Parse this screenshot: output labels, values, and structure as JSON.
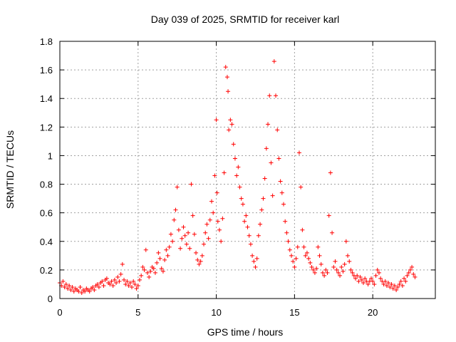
{
  "chart_data": {
    "type": "scatter",
    "title": "Day 039 of 2025, SRMTID for receiver karl",
    "xlabel": "GPS time / hours",
    "ylabel": "SRMTID / TECUs",
    "xlim": [
      0,
      24
    ],
    "ylim": [
      0,
      1.8
    ],
    "x_ticks": [
      0,
      5,
      10,
      15,
      20
    ],
    "x_tick_labels": [
      "0",
      "5",
      "10",
      "15",
      "20"
    ],
    "y_ticks": [
      0,
      0.2,
      0.4,
      0.6,
      0.8,
      1.0,
      1.2,
      1.4,
      1.6,
      1.8
    ],
    "y_tick_labels": [
      "0",
      "0.2",
      "0.4",
      "0.6",
      "0.8",
      "1",
      "1.2",
      "1.4",
      "1.6",
      "1.8"
    ],
    "grid": true,
    "marker": "+",
    "series": [
      {
        "name": "SRMTID",
        "color": "#ff0000",
        "points": [
          [
            0.0,
            0.11
          ],
          [
            0.1,
            0.09
          ],
          [
            0.2,
            0.12
          ],
          [
            0.3,
            0.08
          ],
          [
            0.4,
            0.1
          ],
          [
            0.5,
            0.07
          ],
          [
            0.6,
            0.09
          ],
          [
            0.7,
            0.06
          ],
          [
            0.8,
            0.08
          ],
          [
            0.9,
            0.05
          ],
          [
            1.0,
            0.07
          ],
          [
            1.1,
            0.06
          ],
          [
            1.2,
            0.05
          ],
          [
            1.3,
            0.08
          ],
          [
            1.4,
            0.04
          ],
          [
            1.5,
            0.06
          ],
          [
            1.6,
            0.05
          ],
          [
            1.7,
            0.07
          ],
          [
            1.8,
            0.06
          ],
          [
            1.9,
            0.05
          ],
          [
            2.0,
            0.07
          ],
          [
            2.1,
            0.08
          ],
          [
            2.2,
            0.06
          ],
          [
            2.3,
            0.09
          ],
          [
            2.4,
            0.1
          ],
          [
            2.5,
            0.08
          ],
          [
            2.6,
            0.11
          ],
          [
            2.7,
            0.12
          ],
          [
            2.8,
            0.09
          ],
          [
            2.9,
            0.13
          ],
          [
            3.0,
            0.14
          ],
          [
            3.1,
            0.11
          ],
          [
            3.2,
            0.1
          ],
          [
            3.3,
            0.12
          ],
          [
            3.4,
            0.09
          ],
          [
            3.5,
            0.13
          ],
          [
            3.6,
            0.11
          ],
          [
            3.7,
            0.15
          ],
          [
            3.8,
            0.12
          ],
          [
            3.9,
            0.17
          ],
          [
            4.0,
            0.24
          ],
          [
            4.1,
            0.13
          ],
          [
            4.2,
            0.1
          ],
          [
            4.3,
            0.12
          ],
          [
            4.4,
            0.09
          ],
          [
            4.5,
            0.11
          ],
          [
            4.6,
            0.08
          ],
          [
            4.7,
            0.12
          ],
          [
            4.8,
            0.1
          ],
          [
            4.9,
            0.07
          ],
          [
            5.0,
            0.09
          ],
          [
            5.1,
            0.13
          ],
          [
            5.2,
            0.16
          ],
          [
            5.3,
            0.22
          ],
          [
            5.4,
            0.2
          ],
          [
            5.5,
            0.34
          ],
          [
            5.6,
            0.18
          ],
          [
            5.7,
            0.15
          ],
          [
            5.8,
            0.19
          ],
          [
            5.9,
            0.22
          ],
          [
            6.0,
            0.21
          ],
          [
            6.1,
            0.18
          ],
          [
            6.2,
            0.25
          ],
          [
            6.3,
            0.32
          ],
          [
            6.4,
            0.28
          ],
          [
            6.5,
            0.21
          ],
          [
            6.6,
            0.19
          ],
          [
            6.7,
            0.27
          ],
          [
            6.8,
            0.34
          ],
          [
            6.9,
            0.3
          ],
          [
            7.0,
            0.36
          ],
          [
            7.1,
            0.45
          ],
          [
            7.2,
            0.4
          ],
          [
            7.3,
            0.55
          ],
          [
            7.4,
            0.62
          ],
          [
            7.5,
            0.78
          ],
          [
            7.6,
            0.48
          ],
          [
            7.7,
            0.35
          ],
          [
            7.8,
            0.42
          ],
          [
            7.9,
            0.5
          ],
          [
            8.0,
            0.44
          ],
          [
            8.1,
            0.38
          ],
          [
            8.2,
            0.46
          ],
          [
            8.3,
            0.35
          ],
          [
            8.4,
            0.8
          ],
          [
            8.5,
            0.58
          ],
          [
            8.6,
            0.45
          ],
          [
            8.7,
            0.32
          ],
          [
            8.8,
            0.27
          ],
          [
            8.9,
            0.24
          ],
          [
            9.0,
            0.26
          ],
          [
            9.1,
            0.3
          ],
          [
            9.2,
            0.38
          ],
          [
            9.3,
            0.46
          ],
          [
            9.4,
            0.52
          ],
          [
            9.5,
            0.42
          ],
          [
            9.6,
            0.55
          ],
          [
            9.7,
            0.68
          ],
          [
            9.8,
            0.6
          ],
          [
            9.9,
            0.86
          ],
          [
            10.0,
            1.25
          ],
          [
            10.05,
            0.74
          ],
          [
            10.1,
            0.54
          ],
          [
            10.2,
            0.48
          ],
          [
            10.3,
            0.4
          ],
          [
            10.4,
            0.56
          ],
          [
            10.5,
            0.88
          ],
          [
            10.6,
            1.62
          ],
          [
            10.7,
            1.55
          ],
          [
            10.75,
            1.45
          ],
          [
            10.8,
            1.18
          ],
          [
            10.9,
            1.25
          ],
          [
            11.0,
            1.22
          ],
          [
            11.1,
            1.08
          ],
          [
            11.2,
            0.98
          ],
          [
            11.3,
            0.86
          ],
          [
            11.4,
            0.92
          ],
          [
            11.5,
            0.78
          ],
          [
            11.6,
            0.7
          ],
          [
            11.7,
            0.66
          ],
          [
            11.8,
            0.54
          ],
          [
            11.9,
            0.58
          ],
          [
            12.0,
            0.5
          ],
          [
            12.1,
            0.44
          ],
          [
            12.2,
            0.38
          ],
          [
            12.3,
            0.3
          ],
          [
            12.4,
            0.26
          ],
          [
            12.5,
            0.22
          ],
          [
            12.6,
            0.28
          ],
          [
            12.7,
            0.44
          ],
          [
            12.8,
            0.52
          ],
          [
            12.9,
            0.62
          ],
          [
            13.0,
            0.7
          ],
          [
            13.1,
            0.84
          ],
          [
            13.2,
            1.05
          ],
          [
            13.3,
            1.22
          ],
          [
            13.4,
            1.42
          ],
          [
            13.5,
            0.95
          ],
          [
            13.6,
            0.72
          ],
          [
            13.7,
            1.66
          ],
          [
            13.8,
            1.42
          ],
          [
            13.9,
            1.18
          ],
          [
            14.0,
            0.98
          ],
          [
            14.1,
            0.82
          ],
          [
            14.2,
            0.74
          ],
          [
            14.3,
            0.66
          ],
          [
            14.4,
            0.54
          ],
          [
            14.5,
            0.46
          ],
          [
            14.6,
            0.4
          ],
          [
            14.7,
            0.34
          ],
          [
            14.8,
            0.3
          ],
          [
            14.9,
            0.26
          ],
          [
            15.0,
            0.22
          ],
          [
            15.1,
            0.28
          ],
          [
            15.2,
            0.36
          ],
          [
            15.3,
            1.02
          ],
          [
            15.4,
            0.78
          ],
          [
            15.5,
            0.48
          ],
          [
            15.6,
            0.36
          ],
          [
            15.7,
            0.3
          ],
          [
            15.8,
            0.32
          ],
          [
            15.9,
            0.28
          ],
          [
            16.0,
            0.25
          ],
          [
            16.1,
            0.22
          ],
          [
            16.2,
            0.2
          ],
          [
            16.3,
            0.18
          ],
          [
            16.4,
            0.21
          ],
          [
            16.5,
            0.36
          ],
          [
            16.6,
            0.3
          ],
          [
            16.7,
            0.24
          ],
          [
            16.8,
            0.18
          ],
          [
            16.9,
            0.16
          ],
          [
            17.0,
            0.2
          ],
          [
            17.1,
            0.18
          ],
          [
            17.2,
            0.58
          ],
          [
            17.3,
            0.88
          ],
          [
            17.4,
            0.46
          ],
          [
            17.5,
            0.22
          ],
          [
            17.6,
            0.26
          ],
          [
            17.7,
            0.2
          ],
          [
            17.8,
            0.18
          ],
          [
            17.9,
            0.16
          ],
          [
            18.0,
            0.22
          ],
          [
            18.1,
            0.19
          ],
          [
            18.2,
            0.24
          ],
          [
            18.3,
            0.4
          ],
          [
            18.4,
            0.3
          ],
          [
            18.5,
            0.26
          ],
          [
            18.6,
            0.2
          ],
          [
            18.7,
            0.18
          ],
          [
            18.8,
            0.16
          ],
          [
            18.9,
            0.14
          ],
          [
            19.0,
            0.16
          ],
          [
            19.1,
            0.12
          ],
          [
            19.2,
            0.15
          ],
          [
            19.3,
            0.13
          ],
          [
            19.4,
            0.11
          ],
          [
            19.5,
            0.14
          ],
          [
            19.6,
            0.12
          ],
          [
            19.7,
            0.1
          ],
          [
            19.8,
            0.12
          ],
          [
            19.9,
            0.14
          ],
          [
            20.0,
            0.12
          ],
          [
            20.1,
            0.1
          ],
          [
            20.2,
            0.16
          ],
          [
            20.3,
            0.2
          ],
          [
            20.4,
            0.18
          ],
          [
            20.5,
            0.14
          ],
          [
            20.6,
            0.12
          ],
          [
            20.7,
            0.1
          ],
          [
            20.8,
            0.12
          ],
          [
            20.9,
            0.09
          ],
          [
            21.0,
            0.11
          ],
          [
            21.1,
            0.08
          ],
          [
            21.2,
            0.1
          ],
          [
            21.3,
            0.07
          ],
          [
            21.4,
            0.09
          ],
          [
            21.5,
            0.06
          ],
          [
            21.6,
            0.08
          ],
          [
            21.7,
            0.1
          ],
          [
            21.8,
            0.12
          ],
          [
            21.9,
            0.09
          ],
          [
            22.0,
            0.14
          ],
          [
            22.1,
            0.12
          ],
          [
            22.2,
            0.16
          ],
          [
            22.3,
            0.18
          ],
          [
            22.4,
            0.2
          ],
          [
            22.5,
            0.22
          ],
          [
            22.6,
            0.17
          ],
          [
            22.7,
            0.15
          ]
        ]
      }
    ]
  }
}
